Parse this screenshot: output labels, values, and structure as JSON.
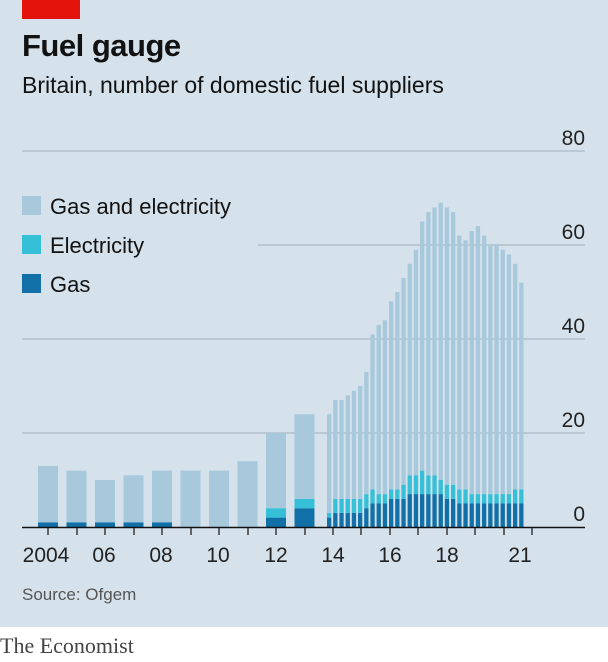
{
  "title": "Fuel gauge",
  "subtitle": "Britain, number of domestic fuel suppliers",
  "source": "Source: Ofgem",
  "brand": "The Economist",
  "colors": {
    "gas_and_electricity": "#a8c8dc",
    "electricity": "#36c0d8",
    "gas": "#1270a8",
    "accent": "#e3120b",
    "background": "#d5e2ec"
  },
  "chart_data": {
    "type": "bar",
    "stacked": true,
    "ylim": [
      0,
      80
    ],
    "y_ticks": [
      "0",
      "20",
      "40",
      "60",
      "80"
    ],
    "x_ticks": [
      "2004",
      "06",
      "08",
      "10",
      "12",
      "14",
      "16",
      "18",
      "21"
    ],
    "legend": [
      "Gas and electricity",
      "Electricity",
      "Gas"
    ],
    "legend_position": "top-left",
    "grid": true,
    "annual": {
      "x": [
        2003,
        2004,
        2005,
        2006,
        2007,
        2008,
        2009,
        2010,
        2011,
        2012
      ],
      "gas": [
        1,
        1,
        1,
        1,
        1,
        0,
        0,
        0,
        2,
        4
      ],
      "electricity": [
        0,
        0,
        0,
        0,
        0,
        0,
        0,
        0,
        2,
        2
      ],
      "gas_and_electricity": [
        12,
        11,
        9,
        10,
        11,
        12,
        12,
        14,
        16,
        18
      ]
    },
    "quarterly": {
      "x": [
        "2013Q1",
        "2013Q2",
        "2013Q3",
        "2013Q4",
        "2014Q1",
        "2014Q2",
        "2014Q3",
        "2014Q4",
        "2015Q1",
        "2015Q2",
        "2015Q3",
        "2015Q4",
        "2016Q1",
        "2016Q2",
        "2016Q3",
        "2016Q4",
        "2017Q1",
        "2017Q2",
        "2017Q3",
        "2017Q4",
        "2018Q1",
        "2018Q2",
        "2018Q3",
        "2018Q4",
        "2019Q1",
        "2019Q2",
        "2019Q3",
        "2019Q4",
        "2020Q1",
        "2020Q2",
        "2020Q3",
        "2020Q4"
      ],
      "gas": [
        2,
        3,
        3,
        3,
        3,
        3,
        4,
        5,
        5,
        5,
        6,
        6,
        6,
        7,
        7,
        7,
        7,
        7,
        7,
        6,
        6,
        5,
        5,
        5,
        5,
        5,
        5,
        5,
        5,
        5,
        5,
        5
      ],
      "electricity": [
        1,
        3,
        3,
        3,
        3,
        3,
        3,
        3,
        2,
        2,
        2,
        2,
        3,
        4,
        4,
        5,
        4,
        4,
        3,
        3,
        3,
        3,
        3,
        2,
        2,
        2,
        2,
        2,
        2,
        2,
        3,
        3
      ],
      "gas_and_electricity": [
        21,
        21,
        21,
        22,
        23,
        24,
        26,
        33,
        36,
        37,
        40,
        42,
        44,
        45,
        48,
        53,
        56,
        57,
        59,
        59,
        58,
        54,
        53,
        56,
        57,
        55,
        53,
        53,
        52,
        51,
        48,
        44
      ]
    }
  }
}
